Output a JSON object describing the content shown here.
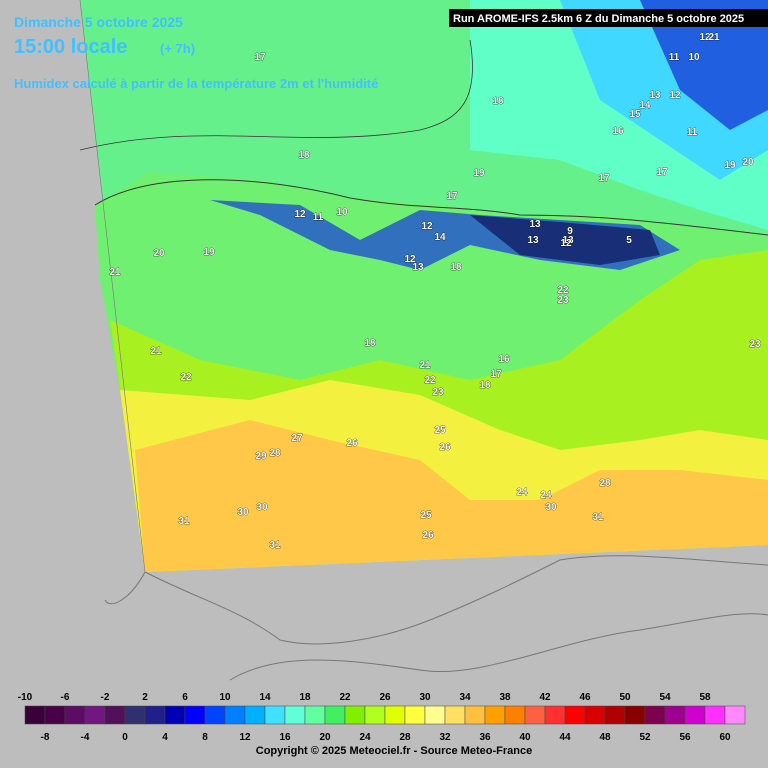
{
  "header": {
    "date": "Dimanche 5 octobre 2025",
    "time": "15:00 locale",
    "offset": "(+ 7h)",
    "subtitle": "Humidex calculé à partir de la température 2m et l'humidité",
    "run": "Run AROME-IFS 2.5km 6 Z du Dimanche 5 octobre 2025"
  },
  "map_labels": [
    17,
    18,
    18,
    16,
    19,
    17,
    17,
    12,
    21,
    11,
    10,
    13,
    12,
    14,
    15,
    11,
    17,
    20,
    19,
    12,
    11,
    10,
    12,
    13,
    12,
    14,
    13,
    13,
    18,
    9,
    13,
    12,
    5,
    21,
    20,
    19,
    22,
    23,
    23,
    21,
    22,
    18,
    21,
    22,
    23,
    16,
    17,
    18,
    25,
    26,
    27,
    26,
    29,
    28,
    30,
    30,
    31,
    31,
    24,
    24,
    25,
    26,
    30,
    28,
    31
  ],
  "colorbar": {
    "labels_top": [
      -10,
      -6,
      -2,
      2,
      6,
      10,
      14,
      18,
      22,
      26,
      30,
      34,
      38,
      42,
      46,
      50,
      54,
      58
    ],
    "labels_bottom": [
      -8,
      -4,
      0,
      4,
      8,
      12,
      16,
      20,
      24,
      28,
      32,
      36,
      40,
      44,
      48,
      52,
      56,
      60
    ],
    "colors": [
      "#3a0038",
      "#4a0048",
      "#5c0c64",
      "#701880",
      "#50105a",
      "#303070",
      "#20208c",
      "#0000b4",
      "#0000ff",
      "#0044ff",
      "#0080ff",
      "#00b0ff",
      "#40e0ff",
      "#60ffd8",
      "#60ffa0",
      "#40f060",
      "#80f000",
      "#b0ff20",
      "#e0ff00",
      "#ffff40",
      "#ffff90",
      "#ffe060",
      "#ffc040",
      "#ffa000",
      "#ff8000",
      "#ff6040",
      "#ff3030",
      "#ff0000",
      "#d80000",
      "#b00000",
      "#880000",
      "#800050",
      "#a00090",
      "#d000d0",
      "#ff30ff",
      "#ff88ff"
    ]
  },
  "footer": {
    "copyright": "Copyright © 2025 Meteociel.fr - Source Meteo-France"
  }
}
